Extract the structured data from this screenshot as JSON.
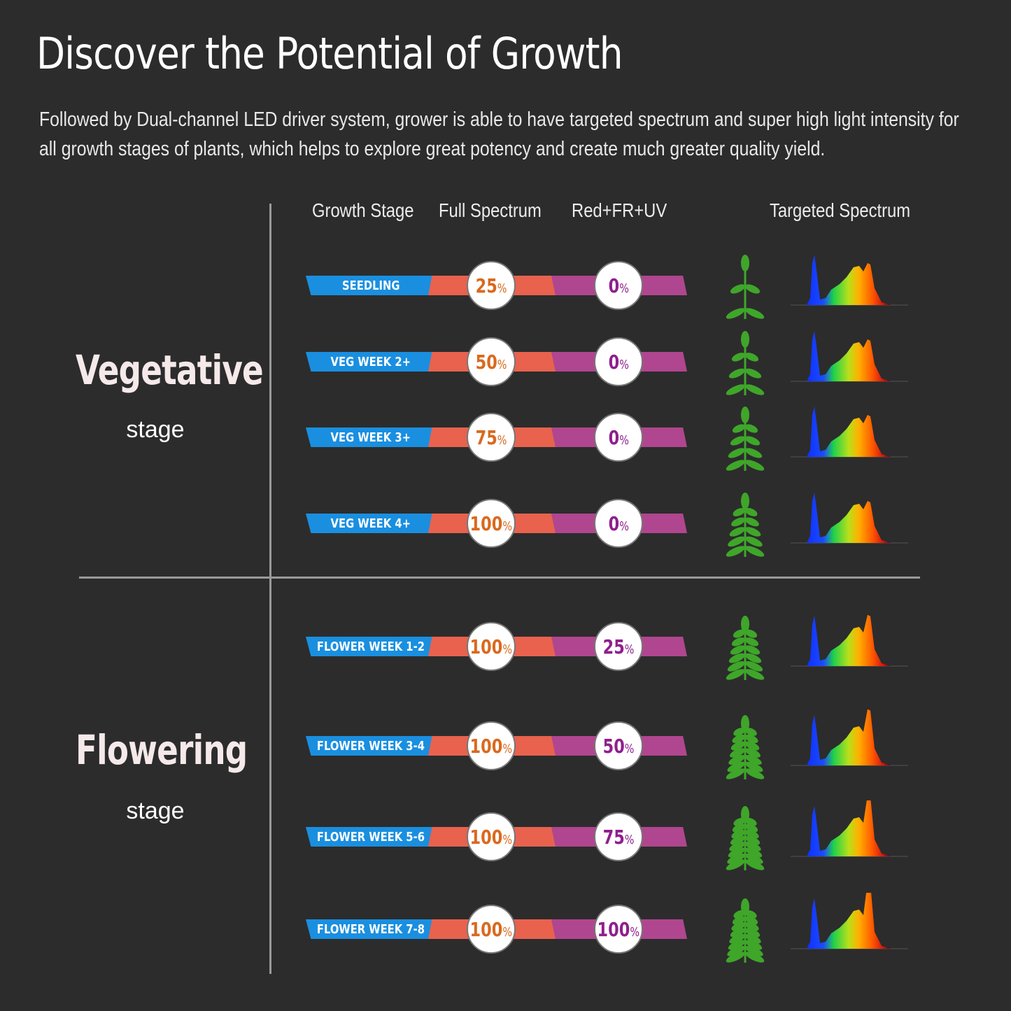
{
  "header": {
    "title": "Discover the Potential of Growth",
    "subtitle": "Followed by Dual-channel LED driver system, grower is able to have targeted spectrum and super high light intensity for all growth stages of plants, which helps to explore great potency and create much greater quality yield."
  },
  "columns": {
    "growth_stage": "Growth Stage",
    "full_spectrum": "Full Spectrum",
    "red_fr_uv": "Red+FR+UV",
    "targeted": "Targeted Spectrum"
  },
  "sections": {
    "vegetative": {
      "title": "Vegetative",
      "sub": "stage"
    },
    "flowering": {
      "title": "Flowering",
      "sub": "stage"
    }
  },
  "rows": [
    {
      "stage": "SEEDLING",
      "full": "25",
      "red": "0"
    },
    {
      "stage": "VEG WEEK 2+",
      "full": "50",
      "red": "0"
    },
    {
      "stage": "VEG WEEK 3+",
      "full": "75",
      "red": "0"
    },
    {
      "stage": "VEG WEEK 4+",
      "full": "100",
      "red": "0"
    },
    {
      "stage": "FLOWER WEEK  1-2",
      "full": "100",
      "red": "25"
    },
    {
      "stage": "FLOWER WEEK 3-4",
      "full": "100",
      "red": "50"
    },
    {
      "stage": "FLOWER WEEK 5-6",
      "full": "100",
      "red": "75"
    },
    {
      "stage": "FLOWER WEEK 7-8",
      "full": "100",
      "red": "100"
    }
  ],
  "percent_symbol": "%",
  "colors": {
    "background": "#2c2c2c",
    "stage_blue": "#1a8fe0",
    "full_orange": "#e8624e",
    "red_purple": "#b0468f",
    "plant_green": "#3fa62a"
  }
}
